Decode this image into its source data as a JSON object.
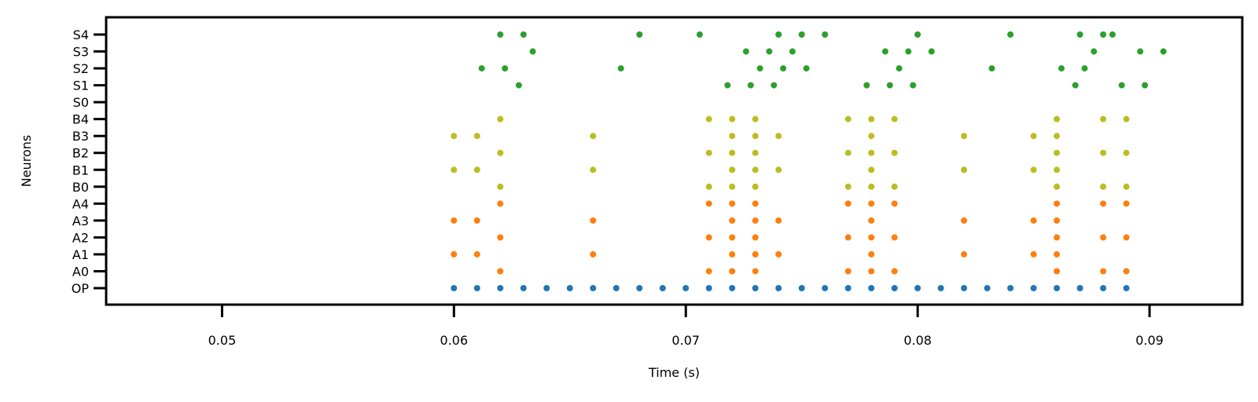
{
  "chart_data": {
    "type": "scatter",
    "title": "",
    "xlabel": "Time (s)",
    "ylabel": "Neurons",
    "xlim": [
      0.045,
      0.094
    ],
    "xticks": [
      0.05,
      0.06,
      0.07,
      0.08,
      0.09
    ],
    "xtick_labels": [
      "0.05",
      "0.06",
      "0.07",
      "0.08",
      "0.09"
    ],
    "categories": [
      "OP",
      "A0",
      "A1",
      "A2",
      "A3",
      "A4",
      "B0",
      "B1",
      "B2",
      "B3",
      "B4",
      "S0",
      "S1",
      "S2",
      "S3",
      "S4"
    ],
    "grid": false,
    "colors": {
      "OP": "#1f77b4",
      "A": "#ff7f0e",
      "B": "#bcbd22",
      "S": "#2ca02c"
    },
    "series": [
      {
        "neuron": "OP",
        "color": "#1f77b4",
        "x": [
          0.06,
          0.061,
          0.062,
          0.063,
          0.064,
          0.065,
          0.066,
          0.067,
          0.068,
          0.069,
          0.07,
          0.071,
          0.072,
          0.073,
          0.074,
          0.075,
          0.076,
          0.077,
          0.078,
          0.079,
          0.08,
          0.081,
          0.082,
          0.083,
          0.084,
          0.085,
          0.086,
          0.087,
          0.088,
          0.089
        ]
      },
      {
        "neuron": "A0",
        "color": "#ff7f0e",
        "x": [
          0.062,
          0.071,
          0.072,
          0.073,
          0.077,
          0.078,
          0.079,
          0.086,
          0.088,
          0.089
        ]
      },
      {
        "neuron": "A1",
        "color": "#ff7f0e",
        "x": [
          0.06,
          0.061,
          0.066,
          0.072,
          0.073,
          0.074,
          0.078,
          0.082,
          0.085,
          0.086
        ]
      },
      {
        "neuron": "A2",
        "color": "#ff7f0e",
        "x": [
          0.062,
          0.071,
          0.072,
          0.073,
          0.077,
          0.078,
          0.079,
          0.086,
          0.088,
          0.089
        ]
      },
      {
        "neuron": "A3",
        "color": "#ff7f0e",
        "x": [
          0.06,
          0.061,
          0.066,
          0.072,
          0.073,
          0.074,
          0.078,
          0.082,
          0.085,
          0.086
        ]
      },
      {
        "neuron": "A4",
        "color": "#ff7f0e",
        "x": [
          0.062,
          0.071,
          0.072,
          0.073,
          0.077,
          0.078,
          0.079,
          0.086,
          0.088,
          0.089
        ]
      },
      {
        "neuron": "B0",
        "color": "#bcbd22",
        "x": [
          0.062,
          0.071,
          0.072,
          0.073,
          0.077,
          0.078,
          0.079,
          0.086,
          0.088,
          0.089
        ]
      },
      {
        "neuron": "B1",
        "color": "#bcbd22",
        "x": [
          0.06,
          0.061,
          0.066,
          0.072,
          0.073,
          0.074,
          0.078,
          0.082,
          0.085,
          0.086
        ]
      },
      {
        "neuron": "B2",
        "color": "#bcbd22",
        "x": [
          0.062,
          0.071,
          0.072,
          0.073,
          0.077,
          0.078,
          0.079,
          0.086,
          0.088,
          0.089
        ]
      },
      {
        "neuron": "B3",
        "color": "#bcbd22",
        "x": [
          0.06,
          0.061,
          0.066,
          0.072,
          0.073,
          0.074,
          0.078,
          0.082,
          0.085,
          0.086
        ]
      },
      {
        "neuron": "B4",
        "color": "#bcbd22",
        "x": [
          0.062,
          0.071,
          0.072,
          0.073,
          0.077,
          0.078,
          0.079,
          0.086,
          0.088,
          0.089
        ]
      },
      {
        "neuron": "S0",
        "color": "#2ca02c",
        "x": []
      },
      {
        "neuron": "S1",
        "color": "#2ca02c",
        "x": [
          0.0628,
          0.0718,
          0.0728,
          0.0738,
          0.0778,
          0.0788,
          0.0798,
          0.0868,
          0.0888,
          0.0898
        ]
      },
      {
        "neuron": "S2",
        "color": "#2ca02c",
        "x": [
          0.0612,
          0.0622,
          0.0672,
          0.0732,
          0.0742,
          0.0752,
          0.0792,
          0.0832,
          0.0862,
          0.0872
        ]
      },
      {
        "neuron": "S3",
        "color": "#2ca02c",
        "x": [
          0.0634,
          0.0726,
          0.0736,
          0.0746,
          0.0786,
          0.0796,
          0.0806,
          0.0876,
          0.0896,
          0.0906
        ]
      },
      {
        "neuron": "S4",
        "color": "#2ca02c",
        "x": [
          0.062,
          0.063,
          0.068,
          0.0706,
          0.074,
          0.075,
          0.076,
          0.08,
          0.084,
          0.087,
          0.088,
          0.0884
        ]
      }
    ]
  }
}
